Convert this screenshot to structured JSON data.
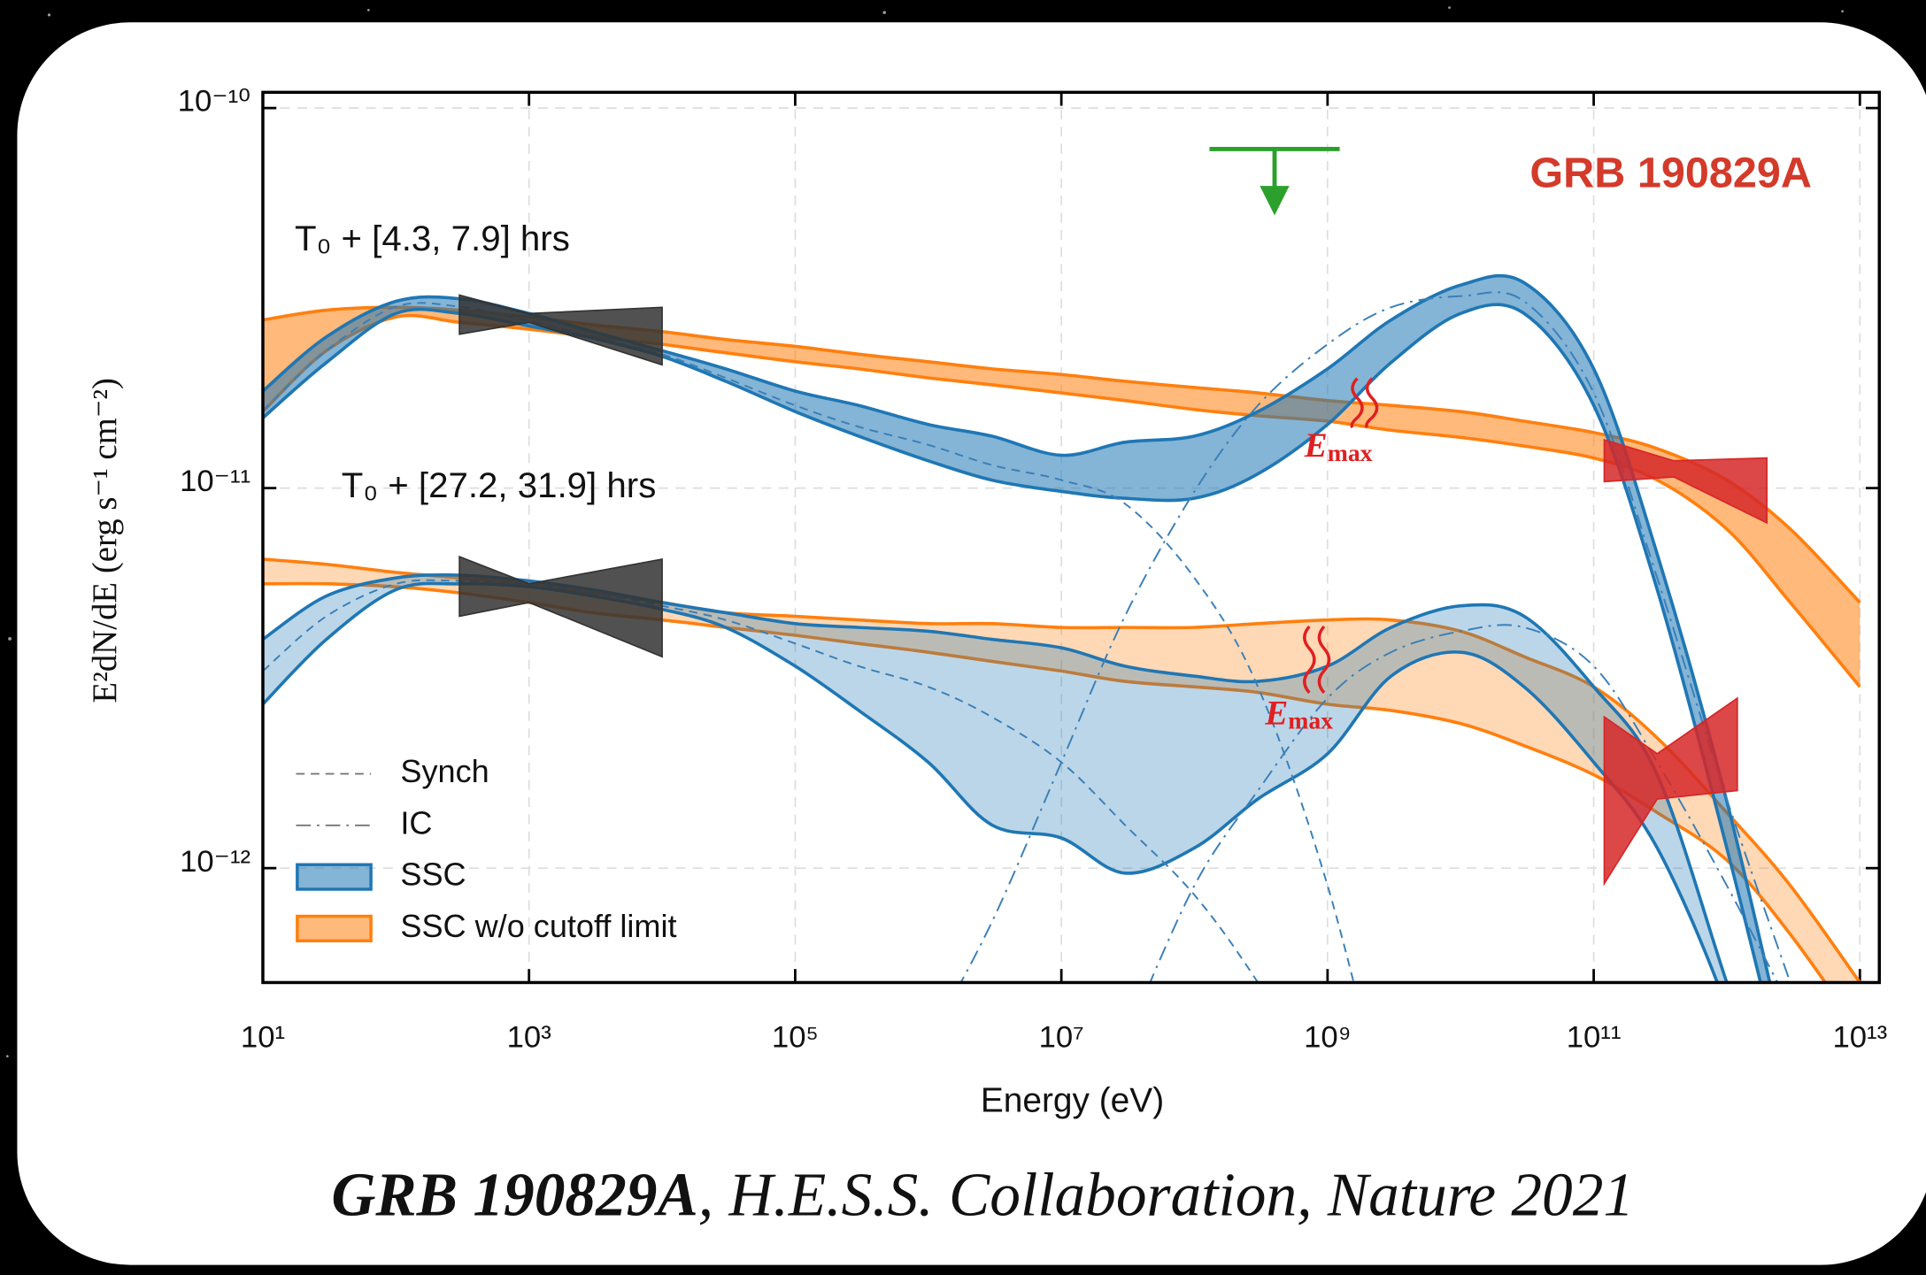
{
  "chart_data": {
    "type": "band",
    "title": "GRB 190829A",
    "x_label": "Energy (eV)",
    "y_label": "E²dN/dE (erg s⁻¹ cm⁻²)",
    "annotations": [
      "T₀ + [4.3, 7.9] hrs",
      "T₀ + [27.2, 31.9] hrs"
    ],
    "emax_labels": [
      {
        "label": "E",
        "subscript": "max"
      },
      {
        "label": "E",
        "subscript": "max"
      }
    ],
    "log_x": true,
    "log_y": true,
    "grid": true,
    "legend": "lower left",
    "xlim": [
      10,
      14000000000000.0
    ],
    "ylim": [
      5e-13,
      1.1e-10
    ],
    "xticks": [
      {
        "value": 10,
        "label": "10¹"
      },
      {
        "value": 1000.0,
        "label": "10³"
      },
      {
        "value": 100000.0,
        "label": "10⁵"
      },
      {
        "value": 10000000.0,
        "label": "10⁷"
      },
      {
        "value": 1000000000.0,
        "label": "10⁹"
      },
      {
        "value": 100000000000.0,
        "label": "10¹¹"
      },
      {
        "value": 10000000000000.0,
        "label": "10¹³"
      }
    ],
    "yticks": [
      {
        "value": 1e-10,
        "label": "10⁻¹⁰"
      },
      {
        "value": 1e-11,
        "label": "10⁻¹¹"
      },
      {
        "value": 1e-12,
        "label": "10⁻¹²"
      }
    ],
    "x": [
      10,
      30,
      100,
      300,
      1000.0,
      3000.0,
      10000.0,
      30000.0,
      100000.0,
      300000.0,
      1000000.0,
      3000000.0,
      10000000.0,
      30000000.0,
      100000000.0,
      300000000.0,
      1000000000.0,
      3000000000.0,
      10000000000.0,
      30000000000.0,
      100000000000.0,
      300000000000.0,
      1000000000000.0,
      3000000000000.0,
      10000000000000.0
    ],
    "series": [
      {
        "name": "Synch",
        "kind": "line",
        "style": "dashed",
        "color": "#3a7fb8",
        "values": [
          1.6e-11,
          2.3e-11,
          3e-11,
          3e-11,
          2.75e-11,
          2.5e-11,
          2.25e-11,
          1.95e-11,
          1.65e-11,
          1.45e-11,
          1.3e-11,
          1.15e-11,
          1.05e-11,
          9.1e-12,
          5.8e-12,
          3e-12,
          9e-13,
          2e-13,
          null,
          null,
          null,
          null,
          null,
          null,
          null
        ]
      },
      {
        "name": "Synch",
        "kind": "line",
        "style": "dashed",
        "color": "#3a7fb8",
        "values": [
          3.3e-12,
          4.6e-12,
          5.6e-12,
          5.7e-12,
          5.6e-12,
          5.3e-12,
          4.9e-12,
          4.5e-12,
          3.9e-12,
          3.4e-12,
          3e-12,
          2.5e-12,
          1.9e-12,
          1.3e-12,
          8.5e-13,
          5e-13,
          2.5e-13,
          null,
          null,
          null,
          null,
          null,
          null,
          null,
          null
        ]
      },
      {
        "name": "IC",
        "kind": "line",
        "style": "dashdot",
        "color": "#3a7fb8",
        "values": [
          null,
          null,
          null,
          null,
          null,
          null,
          null,
          null,
          null,
          null,
          3.5e-13,
          7.2e-13,
          1.9e-12,
          4.6e-12,
          9.8e-12,
          1.65e-11,
          2.39e-11,
          2.99e-11,
          3.2e-11,
          3.1e-11,
          1.78e-11,
          5.8e-12,
          1.52e-12,
          5e-13,
          null
        ]
      },
      {
        "name": "IC",
        "kind": "line",
        "style": "dashdot",
        "color": "#3a7fb8",
        "values": [
          null,
          null,
          null,
          null,
          null,
          null,
          null,
          null,
          null,
          null,
          null,
          null,
          null,
          3.5e-13,
          9e-13,
          1.6e-12,
          2.8e-12,
          3.7e-12,
          4.2e-12,
          4.3e-12,
          3.4e-12,
          1.9e-12,
          9e-13,
          4.3e-13,
          null
        ]
      },
      {
        "name": "SSC",
        "kind": "band",
        "color": "#1f77b4",
        "fill_opacity": 0.55,
        "upper": [
          1.8e-11,
          2.5e-11,
          3.1e-11,
          3.15e-11,
          2.88e-11,
          2.58e-11,
          2.3e-11,
          2.06e-11,
          1.8e-11,
          1.65e-11,
          1.47e-11,
          1.37e-11,
          1.22e-11,
          1.32e-11,
          1.37e-11,
          1.59e-11,
          2.06e-11,
          2.77e-11,
          3.42e-11,
          3.47e-11,
          2.06e-11,
          6.7e-12,
          1.5e-12,
          2.9e-13,
          null
        ],
        "lower": [
          1.53e-11,
          2.14e-11,
          2.88e-11,
          2.88e-11,
          2.67e-11,
          2.48e-11,
          2.22e-11,
          1.91e-11,
          1.59e-11,
          1.37e-11,
          1.18e-11,
          1.05e-11,
          9.8e-12,
          9.4e-12,
          9.4e-12,
          1.09e-11,
          1.47e-11,
          2.14e-11,
          2.88e-11,
          2.88e-11,
          1.65e-11,
          5.4e-12,
          1.13e-12,
          2.4e-13,
          null
        ]
      },
      {
        "name": "SSC",
        "kind": "band",
        "color": "#1f77b4",
        "fill_opacity": 0.3,
        "upper": [
          4e-12,
          5.2e-12,
          5.8e-12,
          5.9e-12,
          5.7e-12,
          5.4e-12,
          5e-12,
          4.7e-12,
          4.4e-12,
          4.3e-12,
          4.2e-12,
          4e-12,
          3.8e-12,
          3.4e-12,
          3.2e-12,
          3.1e-12,
          3.4e-12,
          4.3e-12,
          4.9e-12,
          4.6e-12,
          3e-12,
          1.76e-12,
          5e-13,
          1.6e-13,
          null
        ],
        "lower": [
          2.7e-12,
          4e-12,
          5.4e-12,
          5.6e-12,
          5.5e-12,
          5.2e-12,
          4.8e-12,
          4.3e-12,
          3.4e-12,
          2.6e-12,
          1.9e-12,
          1.3e-12,
          1.2e-12,
          9.7e-13,
          1.13e-12,
          1.52e-12,
          2e-12,
          3.2e-12,
          3.7e-12,
          3e-12,
          1.9e-12,
          1.13e-12,
          4.3e-13,
          1.3e-13,
          null
        ]
      },
      {
        "name": "SSC w/o cutoff limit",
        "kind": "band",
        "color": "#ff7f0e",
        "fill_opacity": 0.55,
        "upper": [
          2.77e-11,
          2.94e-11,
          2.99e-11,
          2.94e-11,
          2.82e-11,
          2.69e-11,
          2.58e-11,
          2.46e-11,
          2.36e-11,
          2.25e-11,
          2.15e-11,
          2.06e-11,
          1.99e-11,
          1.91e-11,
          1.84e-11,
          1.78e-11,
          1.7e-11,
          1.65e-11,
          1.59e-11,
          1.5e-11,
          1.4e-11,
          1.27e-11,
          1.05e-11,
          7.8e-12,
          5e-12
        ],
        "lower": [
          1.59e-11,
          2.3e-11,
          2.82e-11,
          2.73e-11,
          2.62e-11,
          2.5e-11,
          2.39e-11,
          2.27e-11,
          2.15e-11,
          2.06e-11,
          1.95e-11,
          1.87e-11,
          1.78e-11,
          1.7e-11,
          1.61e-11,
          1.55e-11,
          1.5e-11,
          1.42e-11,
          1.36e-11,
          1.29e-11,
          1.2e-11,
          1.05e-11,
          7.8e-12,
          5e-12,
          3e-12
        ]
      },
      {
        "name": "SSC w/o cutoff limit",
        "kind": "band",
        "color": "#ff7f0e",
        "fill_opacity": 0.3,
        "upper": [
          6.5e-12,
          6.3e-12,
          6e-12,
          5.8e-12,
          5.6e-12,
          5.3e-12,
          5e-12,
          4.7e-12,
          4.6e-12,
          4.5e-12,
          4.4e-12,
          4.4e-12,
          4.3e-12,
          4.3e-12,
          4.3e-12,
          4.4e-12,
          4.5e-12,
          4.5e-12,
          4.2e-12,
          3.6e-12,
          3e-12,
          2.2e-12,
          1.4e-12,
          9e-13,
          5e-13
        ],
        "lower": [
          5.6e-12,
          5.6e-12,
          5.5e-12,
          5.3e-12,
          5e-12,
          4.7e-12,
          4.5e-12,
          4.3e-12,
          4.1e-12,
          3.9e-12,
          3.7e-12,
          3.5e-12,
          3.3e-12,
          3.1e-12,
          3e-12,
          2.9e-12,
          2.7e-12,
          2.6e-12,
          2.4e-12,
          2.1e-12,
          1.76e-12,
          1.4e-12,
          1.05e-12,
          6.7e-13,
          3.7e-13
        ]
      }
    ],
    "bowties": [
      {
        "color": "#333333",
        "x": [
          300,
          1000,
          10000
        ],
        "upper": [
          3.22e-11,
          2.88e-11,
          2.99e-11
        ],
        "lower": [
          2.54e-11,
          2.73e-11,
          2.11e-11
        ]
      },
      {
        "color": "#333333",
        "x": [
          300,
          1000,
          10000
        ],
        "upper": [
          6.6e-12,
          5.6e-12,
          6.5e-12
        ],
        "lower": [
          4.6e-12,
          5e-12,
          3.6e-12
        ]
      },
      {
        "color": "#d62728",
        "x": [
          120000000000.0,
          400000000000.0,
          2000000000000.0
        ],
        "upper": [
          1.34e-11,
          1.18e-11,
          1.2e-11
        ],
        "lower": [
          1.04e-11,
          1.07e-11,
          8.1e-12
        ]
      },
      {
        "color": "#d62728",
        "x": [
          120000000000.0,
          300000000000.0,
          1200000000000.0
        ],
        "upper": [
          2.5e-12,
          2e-12,
          2.8e-12
        ],
        "lower": [
          9.1e-13,
          1.52e-12,
          1.6e-12
        ]
      }
    ],
    "upper_limit": {
      "x": 400000000.0,
      "value": 7.8e-11,
      "color": "#2ca02c"
    }
  },
  "caption": {
    "bold": "GRB 190829A",
    "rest": ", H.E.S.S. Collaboration, Nature 2021"
  }
}
